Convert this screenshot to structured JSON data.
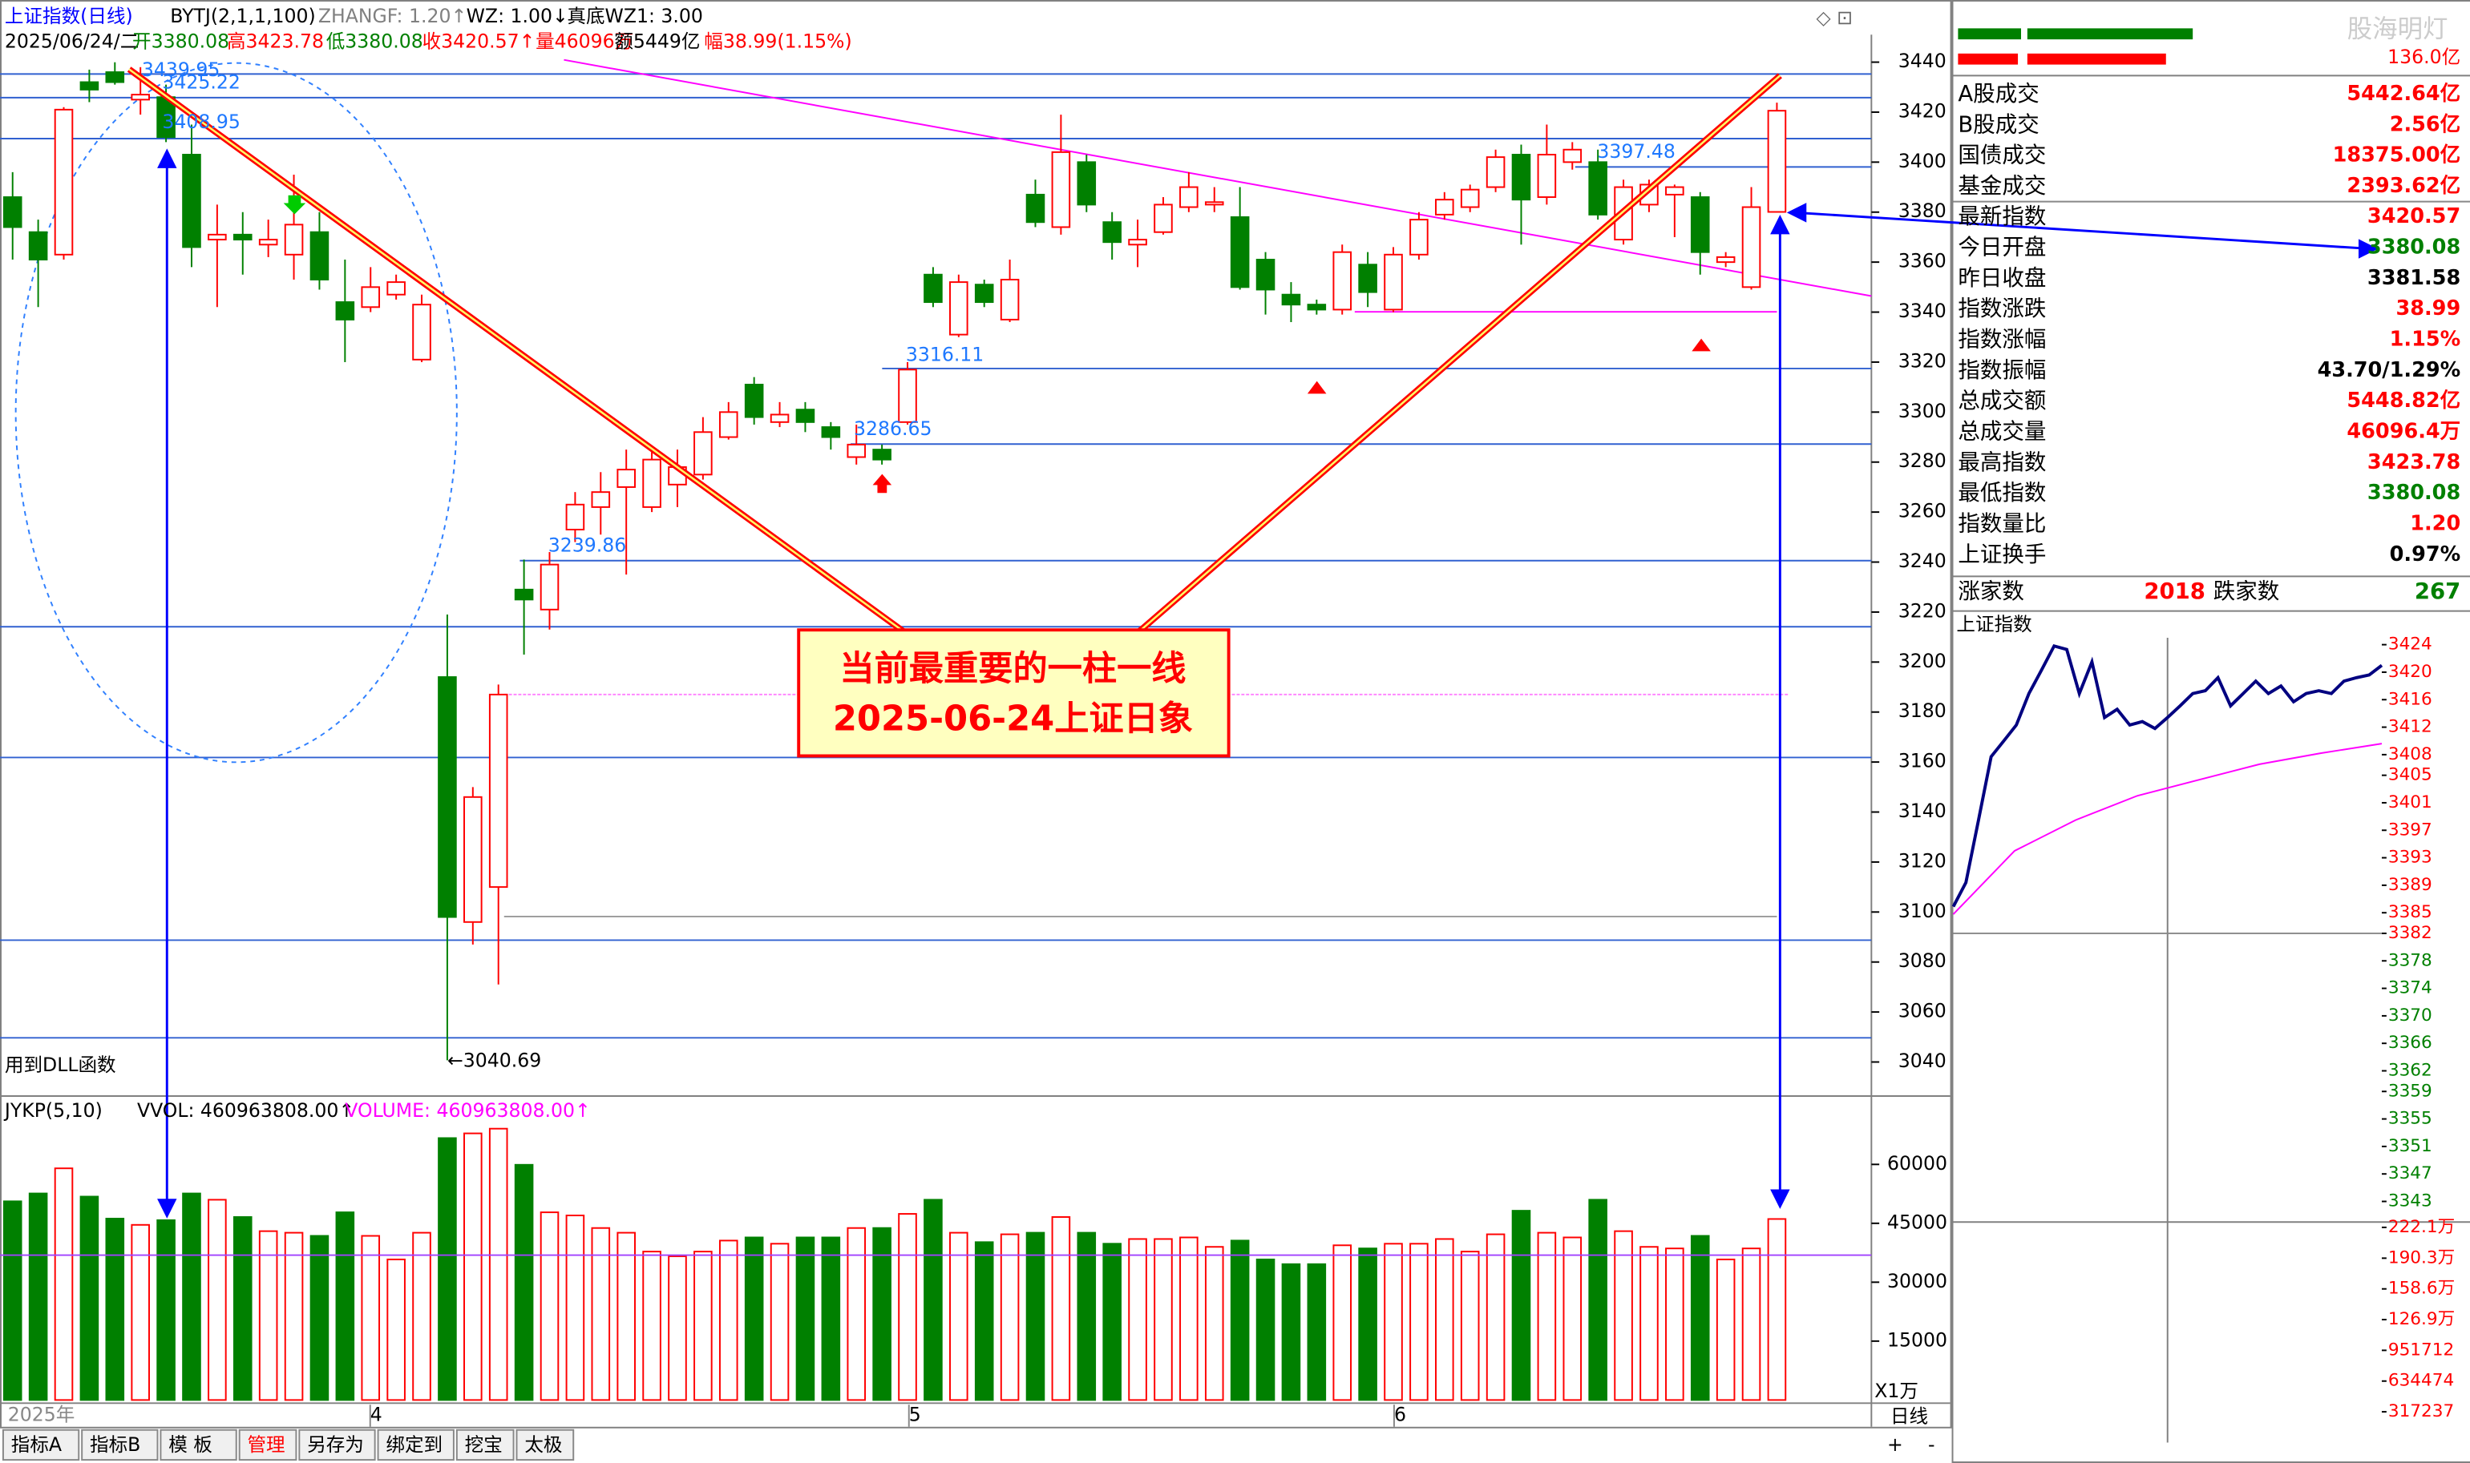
{
  "header": {
    "title": "上证指数(日线)",
    "indicator": "BYTJ(2,1,1,100)",
    "zhangf": "ZHANGF: 1.20↑",
    "wz": "WZ: 1.00↓",
    "wz1": "真底WZ1: 3.00",
    "date": "2025/06/24/二",
    "open": "开3380.08",
    "high": "高3423.78",
    "low": "低3380.08",
    "close": "收3420.57↑",
    "volume": "量46096万",
    "amount": "额5449亿",
    "change": "幅38.99(1.15%)"
  },
  "chart_data": [
    {
      "type": "candlestick",
      "up_color": "#ff0000",
      "down_color": "#008000",
      "ylim": [
        3027,
        3451
      ],
      "yticks": [
        3440,
        3420,
        3400,
        3380,
        3360,
        3340,
        3320,
        3300,
        3280,
        3260,
        3240,
        3220,
        3200,
        3180,
        3160,
        3140,
        3120,
        3100,
        3080,
        3060,
        3040
      ],
      "ohlc": [
        [
          3386,
          3396,
          3361,
          3374
        ],
        [
          3372,
          3377,
          3342,
          3361
        ],
        [
          3363,
          3422,
          3361,
          3421
        ],
        [
          3432,
          3437,
          3424,
          3429
        ],
        [
          3436,
          3439.95,
          3431,
          3432
        ],
        [
          3425,
          3438,
          3419,
          3427
        ],
        [
          3426,
          3431,
          3408,
          3410
        ],
        [
          3403,
          3415,
          3358,
          3366
        ],
        [
          3369,
          3383,
          3342,
          3371
        ],
        [
          3371,
          3380,
          3355,
          3369
        ],
        [
          3367,
          3377,
          3362,
          3369
        ],
        [
          3363,
          3395,
          3353,
          3375
        ],
        [
          3372,
          3380,
          3349,
          3353
        ],
        [
          3344,
          3361,
          3320,
          3337
        ],
        [
          3342,
          3358,
          3340,
          3350
        ],
        [
          3347,
          3355,
          3345,
          3352
        ],
        [
          3321,
          3347,
          3320,
          3343
        ],
        [
          3194,
          3219,
          3040.69,
          3098
        ],
        [
          3096,
          3150,
          3087,
          3146
        ],
        [
          3110,
          3191,
          3071,
          3187
        ],
        [
          3229,
          3241,
          3203,
          3225
        ],
        [
          3221,
          3244,
          3213,
          3239
        ],
        [
          3253,
          3268,
          3248,
          3263
        ],
        [
          3262,
          3276,
          3251,
          3268
        ],
        [
          3270,
          3285,
          3235,
          3277
        ],
        [
          3262,
          3285,
          3260,
          3281
        ],
        [
          3271,
          3285,
          3262,
          3278
        ],
        [
          3275,
          3298,
          3273,
          3292
        ],
        [
          3290,
          3304,
          3289,
          3300
        ],
        [
          3311,
          3314,
          3295,
          3298
        ],
        [
          3296,
          3304,
          3294,
          3299
        ],
        [
          3301,
          3304,
          3292,
          3296
        ],
        [
          3294,
          3296,
          3285,
          3290
        ],
        [
          3282,
          3295,
          3279,
          3287
        ],
        [
          3285,
          3287,
          3279,
          3281
        ],
        [
          3296,
          3320,
          3295,
          3317
        ],
        [
          3355,
          3358,
          3342,
          3344
        ],
        [
          3331,
          3355,
          3330,
          3352
        ],
        [
          3351,
          3353,
          3342,
          3344
        ],
        [
          3337,
          3361,
          3336,
          3353
        ],
        [
          3387,
          3393,
          3374,
          3376
        ],
        [
          3374,
          3419,
          3371,
          3404
        ],
        [
          3400,
          3403,
          3380,
          3383
        ],
        [
          3376,
          3380,
          3361,
          3368
        ],
        [
          3367,
          3377,
          3358,
          3369
        ],
        [
          3372,
          3386,
          3371,
          3383
        ],
        [
          3382,
          3396,
          3380,
          3390
        ],
        [
          3383,
          3390,
          3380,
          3384
        ],
        [
          3378,
          3390,
          3349,
          3350
        ],
        [
          3361,
          3364,
          3339,
          3349
        ],
        [
          3347,
          3352,
          3336,
          3343
        ],
        [
          3343,
          3345,
          3339,
          3341
        ],
        [
          3341,
          3367,
          3339,
          3364
        ],
        [
          3359,
          3364,
          3342,
          3348
        ],
        [
          3341,
          3366,
          3340,
          3363
        ],
        [
          3363,
          3380,
          3361,
          3377
        ],
        [
          3379,
          3388,
          3377,
          3385
        ],
        [
          3382,
          3391,
          3380,
          3389
        ],
        [
          3390,
          3405,
          3388,
          3402
        ],
        [
          3403,
          3407,
          3367,
          3385
        ],
        [
          3386,
          3415,
          3383,
          3403
        ],
        [
          3400,
          3408,
          3397,
          3405
        ],
        [
          3400,
          3405,
          3377,
          3379
        ],
        [
          3369,
          3393,
          3367,
          3390
        ],
        [
          3383,
          3393,
          3380,
          3391
        ],
        [
          3387,
          3391,
          3370,
          3390
        ],
        [
          3386,
          3388,
          3355,
          3364
        ],
        [
          3360,
          3364,
          3358,
          3362
        ],
        [
          3350,
          3390,
          3349,
          3382
        ],
        [
          3380.08,
          3423.78,
          3380.08,
          3420.57
        ]
      ],
      "price_labels": [
        "3439.95",
        "3425.22",
        "3408.95",
        "3316.11",
        "3286.65",
        "3239.86",
        "3397.48",
        "←3040.69"
      ],
      "note": "用到DLL函数",
      "callout": [
        "当前最重要的一柱一线",
        "2025-06-24上证日象"
      ]
    },
    {
      "type": "bar",
      "title": "JYKP(5,10)",
      "vvol": "VVOL: 460963808.00↑",
      "volume_label": "VOLUME: 460963808.00↑",
      "unit": "X1万",
      "ylim": [
        0,
        77000
      ],
      "yticks": [
        60000,
        45000,
        30000,
        15000
      ],
      "values": [
        50600,
        52600,
        59000,
        51800,
        46200,
        44600,
        45800,
        52600,
        51000,
        46600,
        43000,
        42600,
        41800,
        47800,
        41800,
        35800,
        42600,
        66700,
        67900,
        69100,
        59900,
        47800,
        47000,
        43800,
        42600,
        37800,
        36600,
        37800,
        40600,
        41400,
        39800,
        41400,
        41400,
        43800,
        43800,
        47400,
        51000,
        42600,
        40200,
        42200,
        42600,
        46600,
        42600,
        39800,
        41000,
        41000,
        41400,
        39000,
        40600,
        35800,
        34600,
        34600,
        39400,
        38600,
        39800,
        39800,
        41000,
        37800,
        42200,
        48200,
        42600,
        41400,
        51000,
        43000,
        39000,
        38600,
        41800,
        35800,
        38600,
        46096
      ]
    },
    {
      "type": "line",
      "title": "上证指数",
      "ylim": [
        3340,
        3425
      ],
      "yticks": [
        3424,
        3420,
        3416,
        3412,
        3408,
        3405,
        3401,
        3397,
        3393,
        3389,
        3385,
        3382,
        3378,
        3374,
        3370,
        3366,
        3362,
        3359,
        3355,
        3351,
        3347,
        3343
      ],
      "series": [
        {
          "color": "#000080",
          "values": [
            3385.9,
            3389.4,
            3398.5,
            3407.7,
            3410.0,
            3412.3,
            3416.9,
            3420.3,
            3423.8,
            3423.3,
            3416.9,
            3421.5,
            3413.4,
            3414.6,
            3412.3,
            3412.8,
            3411.8,
            3413.4,
            3415.1,
            3416.9,
            3417.3,
            3419.2,
            3415.1,
            3416.9,
            3418.7,
            3416.9,
            3418.0,
            3415.7,
            3416.9,
            3417.3,
            3416.9,
            3418.7,
            3419.2,
            3419.6,
            3421.0
          ]
        },
        {
          "color": "#ff00ff",
          "values": [
            3384.8,
            3394.0,
            3398.5,
            3402.0,
            3404.3,
            3406.6,
            3408.2,
            3409.6
          ]
        }
      ],
      "vol_ylim": [
        0,
        2276000
      ],
      "vol_ticks": [
        {
          "value": 2221000,
          "label": "222.1万"
        },
        {
          "value": 1903000,
          "label": "190.3万"
        },
        {
          "value": 1586000,
          "label": "158.6万"
        },
        {
          "value": 1269000,
          "label": "126.9万"
        },
        951712,
        634474,
        317237
      ]
    }
  ],
  "dates": [
    "2025年",
    "4",
    "5",
    "6"
  ],
  "period": "日线",
  "tabs": [
    "指标A",
    "指标B",
    "模 板",
    "管理",
    "另存为",
    "绑定到",
    "挖宝",
    "太极"
  ],
  "buttons": [
    "+",
    "-"
  ],
  "panel": {
    "watermark": "股海明灯",
    "top_amount": "136.0亿",
    "stats": [
      {
        "label": "A股成交",
        "value": "5442.64亿",
        "color": "#ff0000"
      },
      {
        "label": "B股成交",
        "value": "2.56亿",
        "color": "#ff0000"
      },
      {
        "label": "国债成交",
        "value": "18375.00亿",
        "color": "#ff0000"
      },
      {
        "label": "基金成交",
        "value": "2393.62亿",
        "color": "#ff0000"
      },
      {
        "label": "最新指数",
        "value": "3420.57",
        "color": "#ff0000"
      },
      {
        "label": "今日开盘",
        "value": "3380.08",
        "color": "#008000"
      },
      {
        "label": "昨日收盘",
        "value": "3381.58",
        "color": "#000000"
      },
      {
        "label": "指数涨跌",
        "value": "38.99",
        "color": "#ff0000"
      },
      {
        "label": "指数涨幅",
        "value": "1.15%",
        "color": "#ff0000"
      },
      {
        "label": "指数振幅",
        "value": "43.70/1.29%",
        "color": "#000000"
      },
      {
        "label": "总成交额",
        "value": "5448.82亿",
        "color": "#ff0000"
      },
      {
        "label": "总成交量",
        "value": "46096.4万",
        "color": "#ff0000"
      },
      {
        "label": "最高指数",
        "value": "3423.78",
        "color": "#ff0000"
      },
      {
        "label": "最低指数",
        "value": "3380.08",
        "color": "#008000"
      },
      {
        "label": "指数量比",
        "value": "1.20",
        "color": "#ff0000"
      },
      {
        "label": "上证换手",
        "value": "0.97%",
        "color": "#000000"
      }
    ],
    "up_label": "涨家数",
    "up_count": "2018",
    "down_label": "跌家数",
    "down_count": "267"
  }
}
